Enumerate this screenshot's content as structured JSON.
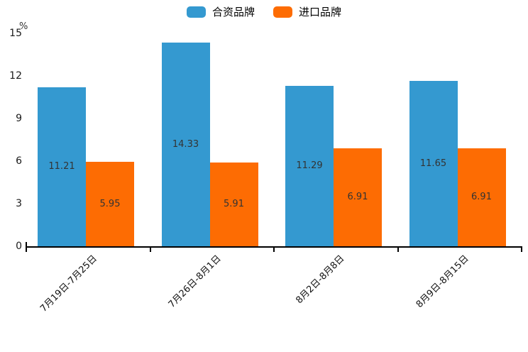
{
  "unit_label": "%",
  "colors": {
    "series_blue": "#3499d0",
    "series_orange": "#fd6c03",
    "axis": "#000000",
    "value_label": "#333333"
  },
  "legend": [
    {
      "label": "合资品牌",
      "color": "#3499d0"
    },
    {
      "label": "进口品牌",
      "color": "#fd6c03"
    }
  ],
  "chart_data": {
    "type": "bar",
    "title": "",
    "categories": [
      "7月19日-7月25日",
      "7月26日-8月1日",
      "8月2日-8月8日",
      "8月9日-8月15日"
    ],
    "series": [
      {
        "name": "合资品牌",
        "color": "#3499d0",
        "values": [
          11.21,
          14.33,
          11.29,
          11.65
        ]
      },
      {
        "name": "进口品牌",
        "color": "#fd6c03",
        "values": [
          5.95,
          5.91,
          6.91,
          6.91
        ]
      }
    ],
    "xlabel": "",
    "ylabel": "%",
    "yticks": [
      0,
      3,
      6,
      9,
      12,
      15
    ],
    "ylim": [
      0,
      15
    ],
    "grid": false,
    "legend_position": "top-center",
    "bar_value_labels": true,
    "x_label_rotation_deg": 45
  }
}
